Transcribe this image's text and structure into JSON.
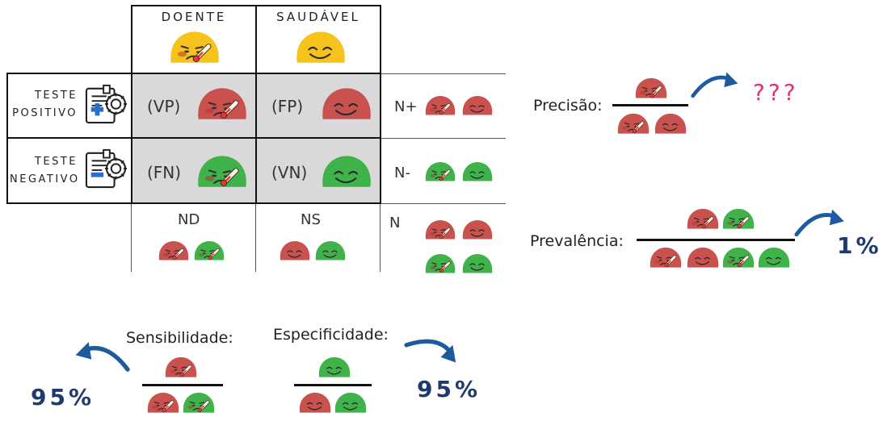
{
  "header": {
    "col1": "DOENTE",
    "col2": "SAUDÁVEL"
  },
  "rows": {
    "positive": [
      "TESTE",
      "POSITIVO"
    ],
    "negative": [
      "TESTE",
      "NEGATIVO"
    ]
  },
  "cells": {
    "vp": "(VP)",
    "fp": "(FP)",
    "fn": "(FN)",
    "vn": "(VN)"
  },
  "totals": {
    "npos": "N+",
    "nneg": "N-",
    "nd": "ND",
    "ns": "NS",
    "n": "N"
  },
  "formulas": {
    "precisao": "Precisão:",
    "precisao_result": "???",
    "prevalencia": "Prevalência:",
    "prevalencia_result": "1%",
    "sensibilidade": "Sensibilidade:",
    "sensibilidade_result": "95%",
    "especificidade": "Especificidade:",
    "especificidade_result": "95%"
  },
  "colors": {
    "sick_face": "#c9524f",
    "healthy_face": "#3fb34a",
    "yellow_face": "#f6c31c",
    "arrow": "#1e5a9e",
    "cell_gray": "#d9d9d9",
    "result_blue": "#1f3b6e",
    "question_pink": "#e62e7b"
  },
  "icons": [
    "test-positive-icon",
    "test-negative-icon",
    "sick-face-icon",
    "healthy-face-icon",
    "curved-arrow-icon"
  ]
}
